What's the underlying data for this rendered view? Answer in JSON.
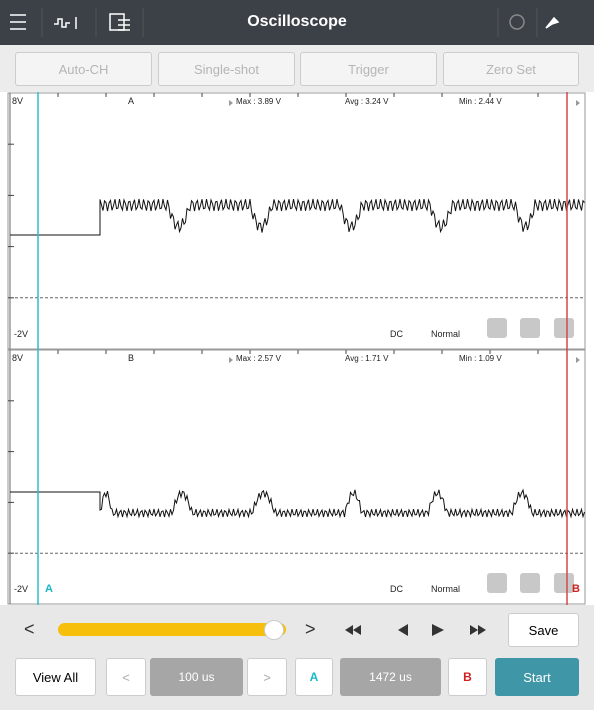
{
  "header": {
    "title": "Oscilloscope"
  },
  "toolbar": {
    "buttons": [
      "Auto-CH",
      "Single-shot",
      "Trigger",
      "Zero Set"
    ]
  },
  "panels": [
    {
      "top_label": "8V",
      "channel": "A",
      "max": "Max : 3.89 V",
      "avg": "Avg : 3.24 V",
      "min": "Min : 2.44 V",
      "bottom_label": "-2V",
      "coupling": "DC",
      "mode": "Normal"
    },
    {
      "top_label": "8V",
      "channel": "B",
      "max": "Max : 2.57 V",
      "avg": "Avg : 1.71 V",
      "min": "Min : 1.09 V",
      "bottom_label": "-2V",
      "coupling": "DC",
      "mode": "Normal"
    }
  ],
  "cursors": {
    "a": "A",
    "b": "B"
  },
  "slider_row": {
    "prev": "<",
    "next": ">",
    "save": "Save"
  },
  "nav_row": {
    "view_all": "View All",
    "prev": "<",
    "time_div": "100 us",
    "next": ">",
    "cursor_a": "A",
    "cursor_time": "1472 us",
    "cursor_b": "B",
    "start": "Start"
  }
}
